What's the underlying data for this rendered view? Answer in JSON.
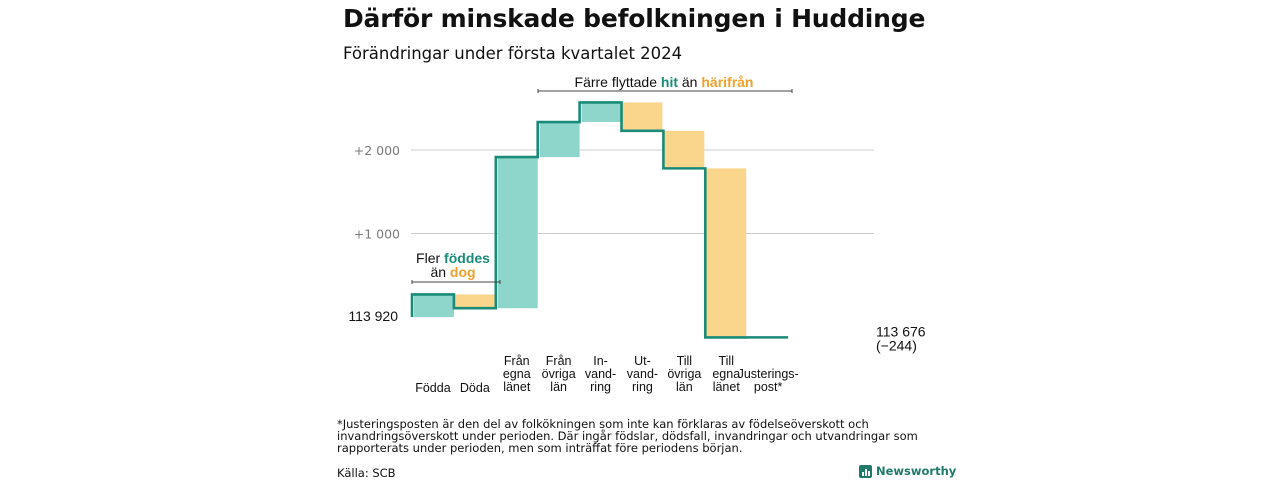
{
  "title": "Därför minskade befolkningen i Huddinge",
  "subtitle": "Förändringar under första kvartalet 2024",
  "colors": {
    "in": "#8ed5cb",
    "out": "#fad68d",
    "line": "#1a8b79",
    "teal_text": "#1a8b79",
    "orange_text": "#eea02a",
    "grid": "#cccccc",
    "tick": "#7a7a7a"
  },
  "chart_data": {
    "type": "waterfall",
    "title": "Därför minskade befolkningen i Huddinge",
    "subtitle": "Förändringar under första kvartalet 2024",
    "y_ticks": [
      {
        "value": 114920,
        "label": "+1  000"
      },
      {
        "value": 115920,
        "label": "+2  000"
      }
    ],
    "ylim": [
      113700,
      116500
    ],
    "grid": true,
    "start": {
      "value": 113920,
      "label": "113  920"
    },
    "end": {
      "value": 113676,
      "label": "113 676",
      "change_label": "(−244)"
    },
    "steps": [
      {
        "label": [
          "Födda"
        ],
        "change": 270,
        "kind": "in"
      },
      {
        "label": [
          "Döda"
        ],
        "change": -165,
        "kind": "out"
      },
      {
        "label": [
          "Från",
          "egna",
          "länet"
        ],
        "change": 1810,
        "kind": "in"
      },
      {
        "label": [
          "Från",
          "övriga",
          "län"
        ],
        "change": 420,
        "kind": "in"
      },
      {
        "label": [
          "In-",
          "vand-",
          "ring"
        ],
        "change": 235,
        "kind": "in"
      },
      {
        "label": [
          "Ut-",
          "vand-",
          "ring"
        ],
        "change": -340,
        "kind": "out"
      },
      {
        "label": [
          "Till",
          "övriga",
          "län"
        ],
        "change": -450,
        "kind": "out"
      },
      {
        "label": [
          "Till",
          "egna",
          "länet"
        ],
        "change": -2025,
        "kind": "out"
      },
      {
        "label": [
          "Justerings-",
          "post*"
        ],
        "change": 1,
        "kind": "adj"
      }
    ],
    "annotations": {
      "births": {
        "line1": "Fler ",
        "line1_hl": "föddes",
        "line2": "än ",
        "line2_hl": "dog"
      },
      "moves": {
        "prefix": "Färre flyttade  ",
        "hl1": "hit",
        "mid": "  än ",
        "hl2": "härifrån"
      }
    }
  },
  "footnote": "*Justeringsposten är den del av folkökningen som inte kan förklaras av födelseöverskott och invandringsöverskott under perioden. Där ingår födslar, dödsfall, invandringar och utvandringar som rapporterats under perioden, men som inträffat före periodens början.",
  "source": "Källa: SCB",
  "brand": "Newsworthy"
}
